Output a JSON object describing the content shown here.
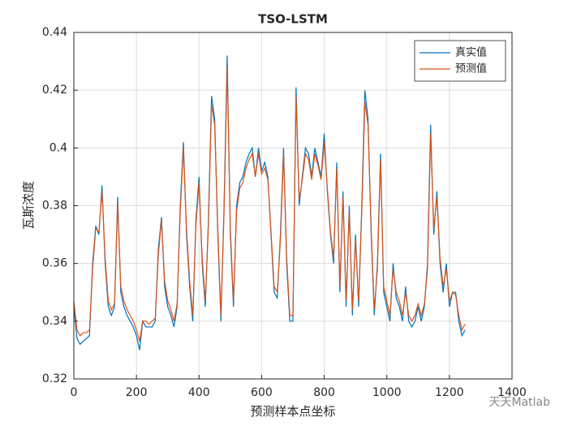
{
  "chart_data": {
    "type": "line",
    "title": "TSO-LSTM",
    "xlabel": "预测样本点坐标",
    "ylabel": "瓦斯浓度",
    "watermark": "天天Matlab",
    "x": [
      0,
      10,
      20,
      30,
      40,
      50,
      60,
      70,
      80,
      90,
      100,
      110,
      120,
      130,
      140,
      150,
      160,
      170,
      180,
      190,
      200,
      210,
      220,
      230,
      240,
      250,
      260,
      270,
      280,
      290,
      300,
      310,
      320,
      330,
      340,
      350,
      360,
      370,
      380,
      390,
      400,
      410,
      420,
      430,
      440,
      450,
      460,
      470,
      480,
      490,
      500,
      510,
      520,
      530,
      540,
      550,
      560,
      570,
      580,
      590,
      600,
      610,
      620,
      630,
      640,
      650,
      660,
      670,
      680,
      690,
      700,
      710,
      720,
      730,
      740,
      750,
      760,
      770,
      780,
      790,
      800,
      810,
      820,
      830,
      840,
      850,
      860,
      870,
      880,
      890,
      900,
      910,
      920,
      930,
      940,
      950,
      960,
      970,
      980,
      990,
      1000,
      1010,
      1020,
      1030,
      1040,
      1050,
      1060,
      1070,
      1080,
      1090,
      1100,
      1110,
      1120,
      1130,
      1140,
      1150,
      1160,
      1170,
      1180,
      1190,
      1200,
      1210,
      1220,
      1230,
      1240,
      1250
    ],
    "series": [
      {
        "name": "真实值",
        "color": "#0072bd",
        "values": [
          0.345,
          0.334,
          0.332,
          0.333,
          0.334,
          0.335,
          0.36,
          0.373,
          0.37,
          0.387,
          0.36,
          0.345,
          0.342,
          0.345,
          0.383,
          0.35,
          0.345,
          0.342,
          0.34,
          0.338,
          0.335,
          0.33,
          0.34,
          0.338,
          0.338,
          0.338,
          0.34,
          0.365,
          0.376,
          0.352,
          0.345,
          0.342,
          0.338,
          0.345,
          0.38,
          0.402,
          0.37,
          0.352,
          0.34,
          0.375,
          0.39,
          0.36,
          0.345,
          0.375,
          0.418,
          0.41,
          0.37,
          0.34,
          0.38,
          0.432,
          0.37,
          0.345,
          0.38,
          0.388,
          0.39,
          0.395,
          0.398,
          0.4,
          0.39,
          0.4,
          0.392,
          0.395,
          0.39,
          0.37,
          0.35,
          0.348,
          0.37,
          0.4,
          0.36,
          0.34,
          0.34,
          0.421,
          0.38,
          0.39,
          0.4,
          0.398,
          0.39,
          0.4,
          0.395,
          0.39,
          0.405,
          0.385,
          0.37,
          0.36,
          0.395,
          0.35,
          0.385,
          0.345,
          0.38,
          0.342,
          0.37,
          0.345,
          0.38,
          0.42,
          0.41,
          0.37,
          0.342,
          0.36,
          0.398,
          0.35,
          0.345,
          0.34,
          0.36,
          0.348,
          0.345,
          0.34,
          0.352,
          0.34,
          0.338,
          0.34,
          0.345,
          0.34,
          0.345,
          0.36,
          0.408,
          0.37,
          0.385,
          0.36,
          0.35,
          0.36,
          0.345,
          0.35,
          0.35,
          0.34,
          0.335,
          0.337
        ]
      },
      {
        "name": "预测值",
        "color": "#d95319",
        "values": [
          0.347,
          0.337,
          0.335,
          0.336,
          0.336,
          0.337,
          0.358,
          0.372,
          0.371,
          0.385,
          0.362,
          0.347,
          0.344,
          0.346,
          0.381,
          0.352,
          0.347,
          0.344,
          0.342,
          0.34,
          0.337,
          0.333,
          0.34,
          0.34,
          0.339,
          0.34,
          0.341,
          0.363,
          0.375,
          0.354,
          0.347,
          0.344,
          0.34,
          0.346,
          0.378,
          0.4,
          0.372,
          0.354,
          0.342,
          0.373,
          0.388,
          0.362,
          0.347,
          0.373,
          0.415,
          0.408,
          0.372,
          0.342,
          0.378,
          0.428,
          0.372,
          0.347,
          0.378,
          0.386,
          0.388,
          0.393,
          0.396,
          0.398,
          0.39,
          0.398,
          0.391,
          0.393,
          0.389,
          0.371,
          0.352,
          0.35,
          0.368,
          0.398,
          0.362,
          0.342,
          0.342,
          0.418,
          0.382,
          0.389,
          0.398,
          0.396,
          0.389,
          0.398,
          0.394,
          0.389,
          0.402,
          0.386,
          0.371,
          0.362,
          0.393,
          0.352,
          0.383,
          0.347,
          0.378,
          0.344,
          0.368,
          0.347,
          0.378,
          0.416,
          0.408,
          0.372,
          0.344,
          0.358,
          0.396,
          0.352,
          0.347,
          0.342,
          0.358,
          0.35,
          0.347,
          0.342,
          0.35,
          0.342,
          0.34,
          0.342,
          0.346,
          0.342,
          0.346,
          0.358,
          0.405,
          0.372,
          0.383,
          0.362,
          0.352,
          0.358,
          0.347,
          0.35,
          0.349,
          0.342,
          0.337,
          0.339
        ]
      }
    ],
    "xlim": [
      0,
      1400
    ],
    "xticks": [
      0,
      200,
      400,
      600,
      800,
      1000,
      1200,
      1400
    ],
    "ylim": [
      0.32,
      0.44
    ],
    "yticks": [
      0.32,
      0.34,
      0.36,
      0.38,
      0.4,
      0.42,
      0.44
    ],
    "grid": true,
    "legend": "northeast"
  }
}
